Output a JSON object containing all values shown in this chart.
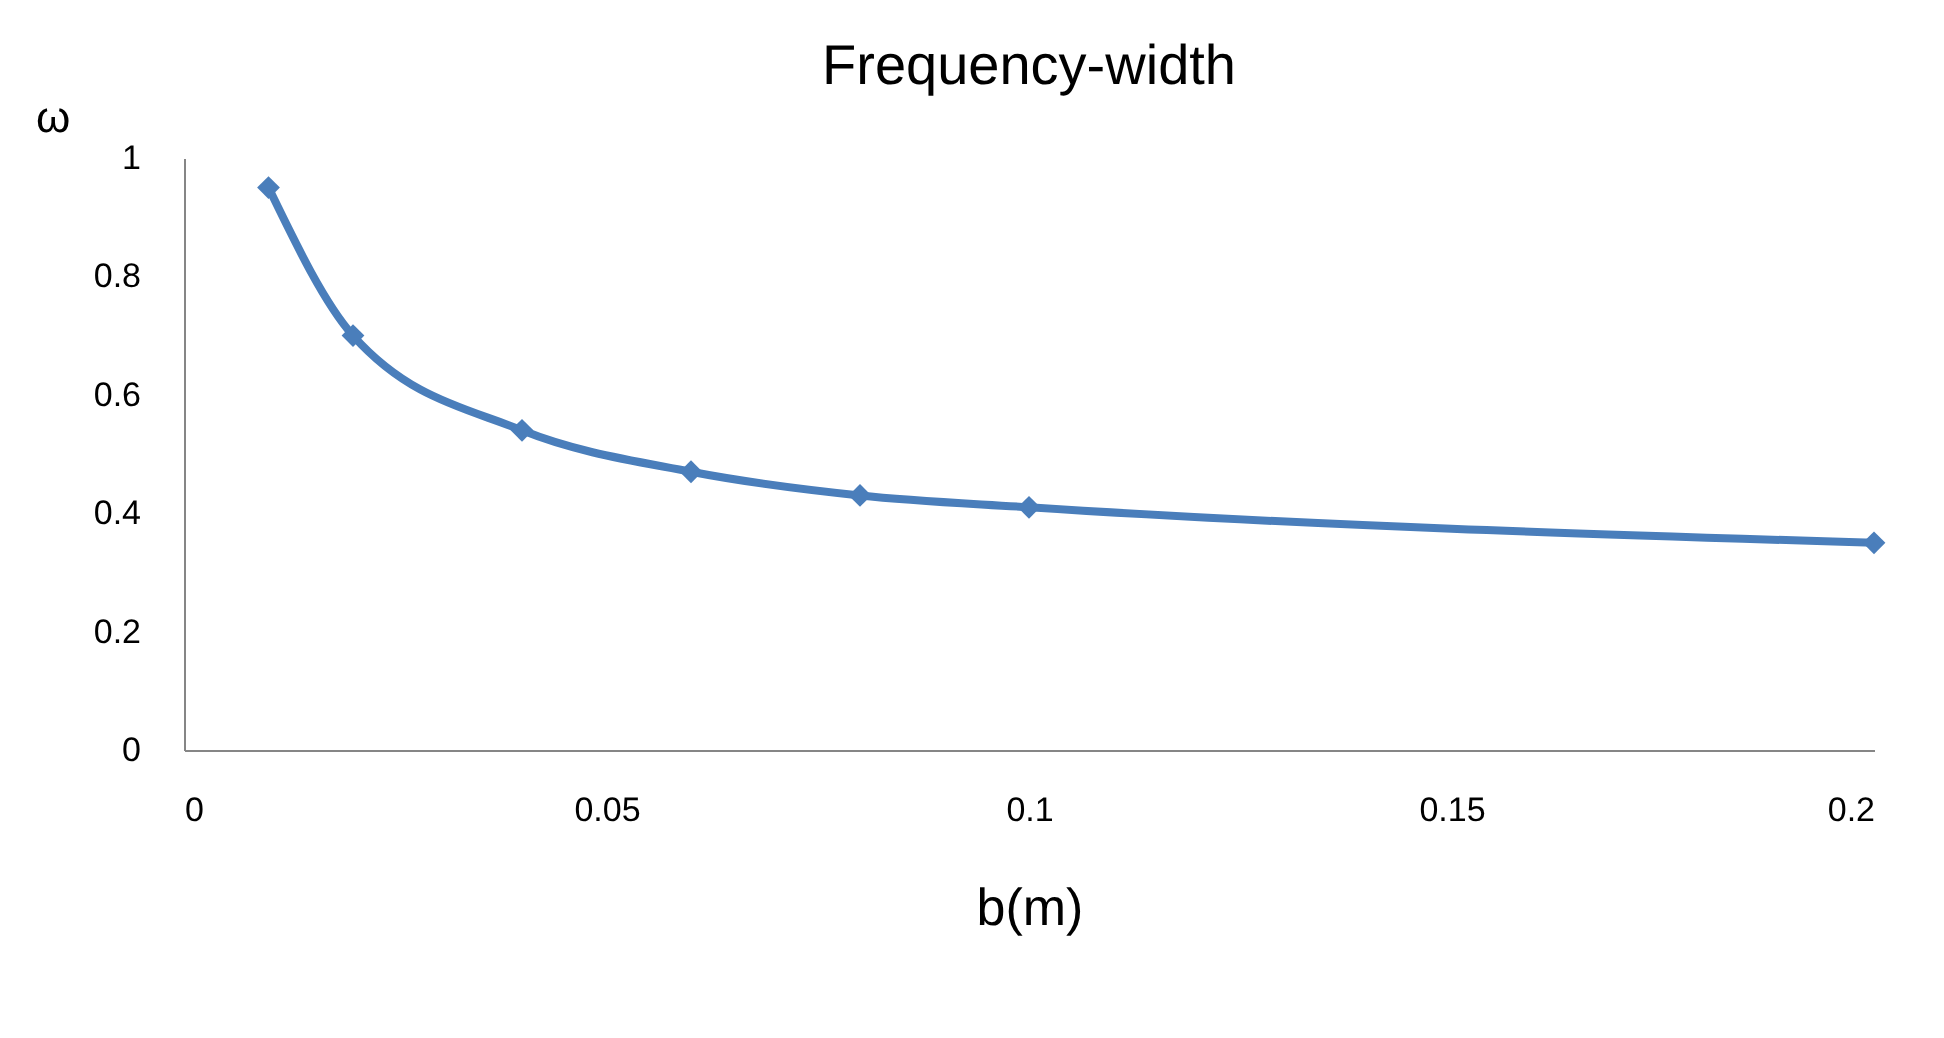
{
  "chart_data": {
    "type": "line",
    "title": "Frequency-width",
    "xlabel": "b(m)",
    "ylabel": "ω",
    "x": [
      0.01,
      0.02,
      0.04,
      0.06,
      0.08,
      0.1,
      0.2
    ],
    "series": [
      {
        "color": "#4a7ebb",
        "values": [
          0.95,
          0.7,
          0.54,
          0.47,
          0.43,
          0.41,
          0.35
        ]
      }
    ],
    "xlim": [
      0,
      0.2
    ],
    "xticks": [
      0,
      0.05,
      0.1,
      0.15,
      0.2
    ],
    "ylim": [
      0,
      1
    ],
    "yticks": [
      0,
      0.2,
      0.4,
      0.6,
      0.8,
      1
    ],
    "marker": "diamond",
    "line_style": "solid",
    "grid": false
  }
}
